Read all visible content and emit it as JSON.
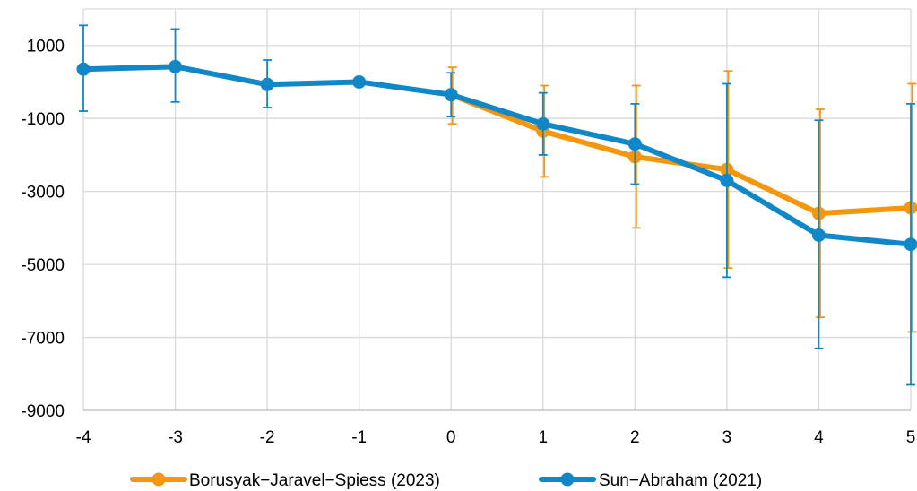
{
  "chart_data": {
    "type": "line",
    "title": "",
    "xlabel": "",
    "ylabel": "",
    "x": [
      -4,
      -3,
      -2,
      -1,
      0,
      1,
      2,
      3,
      4,
      5
    ],
    "x_tick_labels": [
      "-4",
      "-3",
      "-2",
      "-1",
      "0",
      "1",
      "2",
      "3",
      "4",
      "5"
    ],
    "y_tick_values": [
      1000,
      -1000,
      -3000,
      -5000,
      -7000,
      -9000
    ],
    "y_tick_labels": [
      "1000",
      "-1000",
      "-3000",
      "-5000",
      "-7000",
      "-9000"
    ],
    "xlim": [
      -4,
      5
    ],
    "ylim": [
      -9000,
      2000
    ],
    "grid": true,
    "legend_position": "bottom",
    "error_bars": true,
    "series": [
      {
        "name": "Borusyak−Jaravel−Spiess (2023)",
        "color": "#F5960F",
        "x": [
          0,
          1,
          2,
          3,
          4,
          5
        ],
        "y": [
          -350,
          -1350,
          -2050,
          -2400,
          -3600,
          -3450
        ],
        "lower": [
          -1150,
          -2600,
          -4000,
          -5100,
          -6450,
          -6850
        ],
        "upper": [
          400,
          -100,
          -100,
          300,
          -750,
          -50
        ]
      },
      {
        "name": "Sun−Abraham (2021)",
        "color": "#1088C8",
        "x": [
          -4,
          -3,
          -2,
          -1,
          0,
          1,
          2,
          3,
          4,
          5
        ],
        "y": [
          350,
          420,
          -70,
          0,
          -350,
          -1150,
          -1700,
          -2700,
          -4200,
          -4450
        ],
        "lower": [
          -800,
          -550,
          -700,
          0,
          -950,
          -2000,
          -2800,
          -5350,
          -7300,
          -8300
        ],
        "upper": [
          1550,
          1450,
          600,
          0,
          250,
          -300,
          -600,
          -50,
          -1050,
          -600
        ]
      }
    ]
  }
}
